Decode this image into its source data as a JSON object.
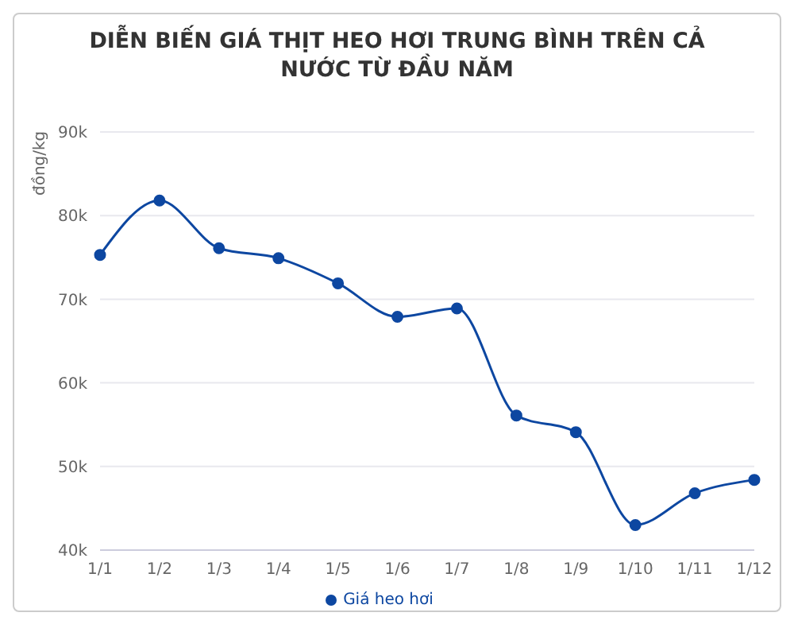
{
  "chart_data": {
    "type": "line",
    "title": "DIỄN BIẾN GIÁ THỊT HEO HƠI TRUNG BÌNH TRÊN CẢ NƯỚC TỪ ĐẦU NĂM",
    "ylabel": "đồng/kg",
    "categories": [
      "1/1",
      "1/2",
      "1/3",
      "1/4",
      "1/5",
      "1/6",
      "1/7",
      "1/8",
      "1/9",
      "1/10",
      "1/11",
      "1/12"
    ],
    "series": [
      {
        "name": "Giá heo hơi",
        "color": "#0d47a1",
        "values": [
          75300,
          81800,
          76100,
          74900,
          71900,
          67900,
          68900,
          56100,
          54100,
          43000,
          46800,
          48400
        ]
      }
    ],
    "ylim": [
      40000,
      90000
    ],
    "yticks": [
      {
        "value": 40000,
        "label": "40k"
      },
      {
        "value": 50000,
        "label": "50k"
      },
      {
        "value": 60000,
        "label": "60k"
      },
      {
        "value": 70000,
        "label": "70k"
      },
      {
        "value": 80000,
        "label": "80k"
      },
      {
        "value": 90000,
        "label": "90k"
      }
    ],
    "grid": "y",
    "legend": "bottom",
    "marker": "circle",
    "line_style": "solid"
  }
}
